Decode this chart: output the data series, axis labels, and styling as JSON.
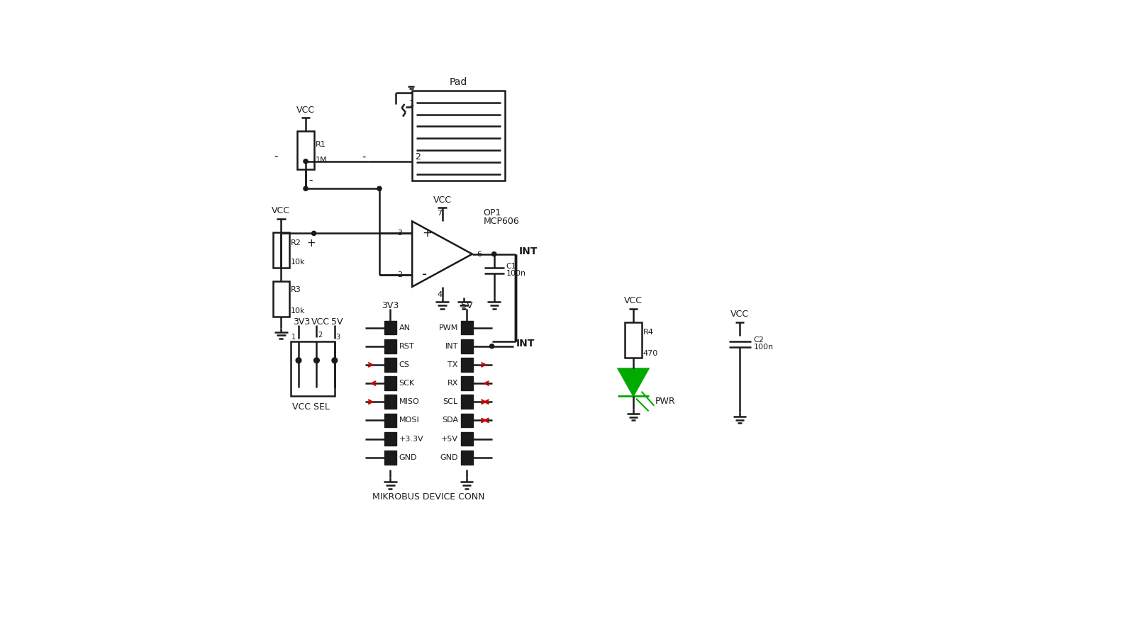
{
  "bg_color": "#ffffff",
  "lc": "#1a1a1a",
  "rc": "#cc0000",
  "gc": "#00aa00",
  "figsize": [
    15.99,
    8.71
  ],
  "dpi": 100,
  "xlim": [
    0,
    1599
  ],
  "ylim": [
    0,
    871
  ],
  "pad_label": "Pad",
  "r1_labels": [
    "R1",
    "1M"
  ],
  "r2_labels": [
    "R2",
    "10k"
  ],
  "r3_labels": [
    "R3",
    "10k"
  ],
  "op_labels": [
    "OP1",
    "MCP606"
  ],
  "c1_labels": [
    "C1",
    "100n"
  ],
  "c2_labels": [
    "C2",
    "100n"
  ],
  "r4_labels": [
    "R4",
    "470"
  ],
  "vcc_sel_label": "VCC SEL",
  "mb_label": "MIKROBUS DEVICE CONN",
  "pwr_label": "PWR",
  "int_label": "INT",
  "mb_left_pins": [
    "AN",
    "RST",
    "CS",
    "SCK",
    "MISO",
    "MOSI",
    "+3.3V",
    "GND"
  ],
  "mb_right_pins": [
    "PWM",
    "INT",
    "TX",
    "RX",
    "SCL",
    "SDA",
    "+5V",
    "GND"
  ]
}
